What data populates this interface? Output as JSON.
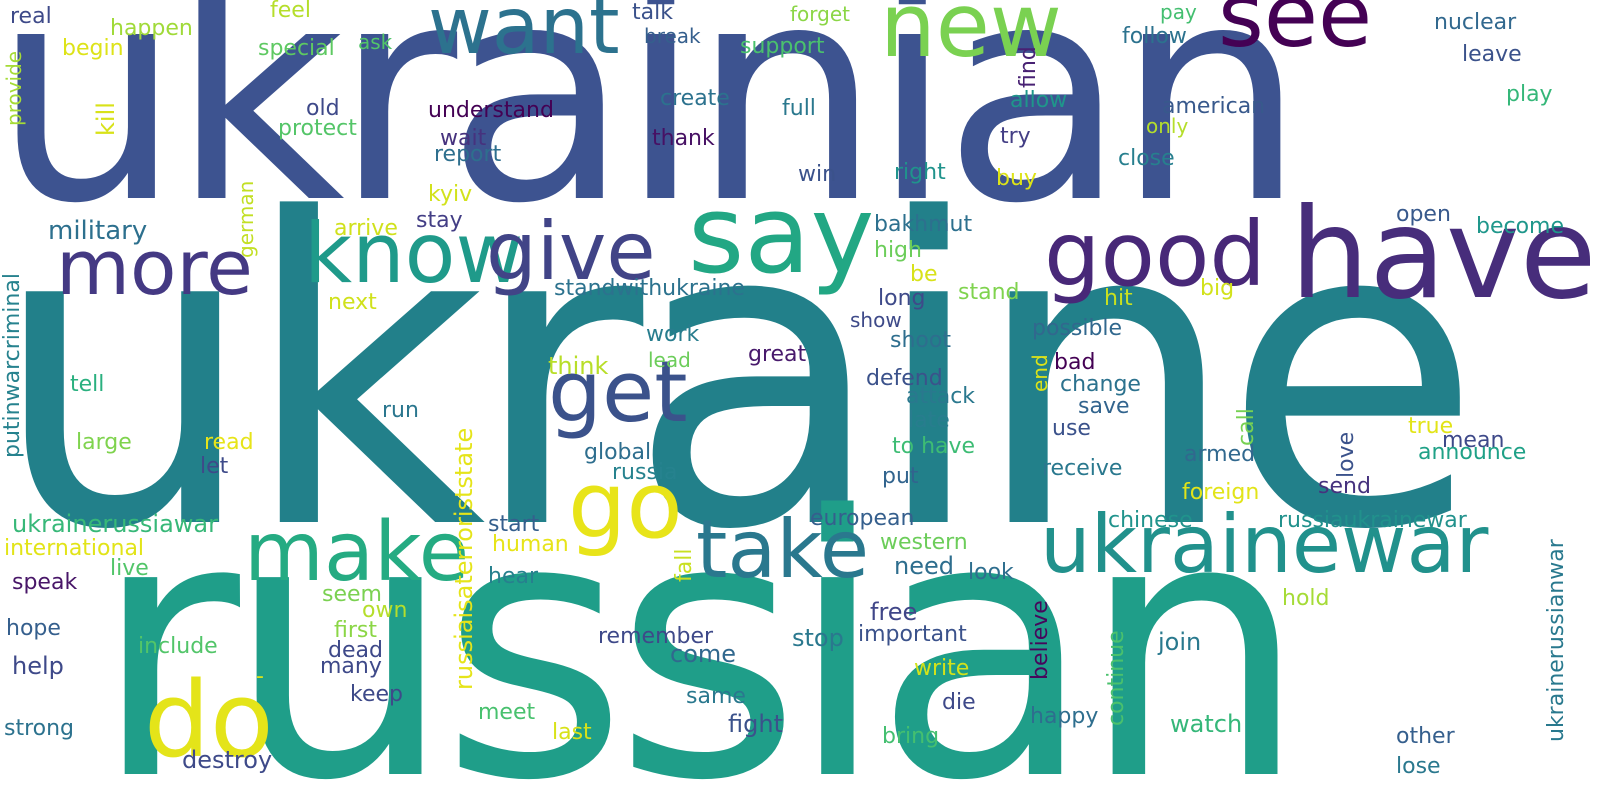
{
  "words": [
    {
      "text": "ukraine",
      "color": "#22808a"
    },
    {
      "text": "ukrainian",
      "color": "#3d5390"
    },
    {
      "text": "russian",
      "color": "#1f9e89"
    },
    {
      "text": "have",
      "color": "#472d7b"
    },
    {
      "text": "say",
      "color": "#22a784"
    },
    {
      "text": "know",
      "color": "#1f9a8a"
    },
    {
      "text": "give",
      "color": "#414487"
    },
    {
      "text": "good",
      "color": "#482878"
    },
    {
      "text": "more",
      "color": "#443983"
    },
    {
      "text": "want",
      "color": "#2c728e"
    },
    {
      "text": "new",
      "color": "#7ad151"
    },
    {
      "text": "see",
      "color": "#440154"
    },
    {
      "text": "get",
      "color": "#3b528b"
    },
    {
      "text": "go",
      "color": "#e8e419"
    },
    {
      "text": "make",
      "color": "#25ab82"
    },
    {
      "text": "take",
      "color": "#2a788e"
    },
    {
      "text": "ukrainewar",
      "color": "#21918c"
    },
    {
      "text": "do",
      "color": "#e4e419"
    },
    {
      "text": "real",
      "color": "#3e4a89"
    },
    {
      "text": "happen",
      "color": "#a0da39"
    },
    {
      "text": "feel",
      "color": "#b5de2b"
    },
    {
      "text": "begin",
      "color": "#dde318"
    },
    {
      "text": "special",
      "color": "#5ec962"
    },
    {
      "text": "ask",
      "color": "#52c569"
    },
    {
      "text": "talk",
      "color": "#3b528b"
    },
    {
      "text": "break",
      "color": "#355f8d"
    },
    {
      "text": "forget",
      "color": "#8bd646"
    },
    {
      "text": "support",
      "color": "#4ac16d"
    },
    {
      "text": "pay",
      "color": "#44bf70"
    },
    {
      "text": "follow",
      "color": "#2c728e"
    },
    {
      "text": "nuclear",
      "color": "#31688e"
    },
    {
      "text": "leave",
      "color": "#3b528b"
    },
    {
      "text": "play",
      "color": "#35b779"
    },
    {
      "text": "provide",
      "color": "#a5db36"
    },
    {
      "text": "kill",
      "color": "#d8e219"
    },
    {
      "text": "old",
      "color": "#3e4989"
    },
    {
      "text": "protect",
      "color": "#54c568"
    },
    {
      "text": "understand",
      "color": "#440154"
    },
    {
      "text": "wait",
      "color": "#46327e"
    },
    {
      "text": "report",
      "color": "#2e6f8e"
    },
    {
      "text": "create",
      "color": "#2c728e"
    },
    {
      "text": "thank",
      "color": "#471164"
    },
    {
      "text": "full",
      "color": "#2a788e"
    },
    {
      "text": "find",
      "color": "#482173"
    },
    {
      "text": "allow",
      "color": "#1f968b"
    },
    {
      "text": "try",
      "color": "#433e85"
    },
    {
      "text": "american",
      "color": "#38598c"
    },
    {
      "text": "only",
      "color": "#b5de2b"
    },
    {
      "text": "close",
      "color": "#277f8e"
    },
    {
      "text": "german",
      "color": "#c2df23"
    },
    {
      "text": "kyiv",
      "color": "#d2e21b"
    },
    {
      "text": "win",
      "color": "#3b528b"
    },
    {
      "text": "right",
      "color": "#20938c"
    },
    {
      "text": "buy",
      "color": "#dde318"
    },
    {
      "text": "putinwarcriminal",
      "color": "#26828e"
    },
    {
      "text": "military",
      "color": "#2d708e"
    },
    {
      "text": "arrive",
      "color": "#d0e11c"
    },
    {
      "text": "stay",
      "color": "#433e85"
    },
    {
      "text": "bakhmut",
      "color": "#2d708e"
    },
    {
      "text": "open",
      "color": "#38598c"
    },
    {
      "text": "become",
      "color": "#1f978b"
    },
    {
      "text": "high",
      "color": "#6ccd5a"
    },
    {
      "text": "next",
      "color": "#d0e11c"
    },
    {
      "text": "standwithukraine",
      "color": "#2c728e"
    },
    {
      "text": "be",
      "color": "#d8e219"
    },
    {
      "text": "long",
      "color": "#3e4a89"
    },
    {
      "text": "stand",
      "color": "#7fd34e"
    },
    {
      "text": "hit",
      "color": "#c8e020"
    },
    {
      "text": "big",
      "color": "#d2e21b"
    },
    {
      "text": "russiaisaterroriststate",
      "color": "#e5e419"
    },
    {
      "text": "work",
      "color": "#287d8e"
    },
    {
      "text": "lead",
      "color": "#6ccd5a"
    },
    {
      "text": "think",
      "color": "#b8de29"
    },
    {
      "text": "great",
      "color": "#481a6c"
    },
    {
      "text": "show",
      "color": "#3e4a89"
    },
    {
      "text": "shoot",
      "color": "#2e6e8e"
    },
    {
      "text": "possible",
      "color": "#31688e"
    },
    {
      "text": "tell",
      "color": "#2ab07f"
    },
    {
      "text": "defend",
      "color": "#3b528b"
    },
    {
      "text": "end",
      "color": "#dde318"
    },
    {
      "text": "bad",
      "color": "#440154"
    },
    {
      "text": "change",
      "color": "#2c728e"
    },
    {
      "text": "attack",
      "color": "#2a788e"
    },
    {
      "text": "save",
      "color": "#32648e"
    },
    {
      "text": "run",
      "color": "#2a768e"
    },
    {
      "text": "late",
      "color": "#287d8e"
    },
    {
      "text": "use",
      "color": "#3b528b"
    },
    {
      "text": "call",
      "color": "#77d153"
    },
    {
      "text": "true",
      "color": "#e2e418"
    },
    {
      "text": "mean",
      "color": "#3e4989"
    },
    {
      "text": "large",
      "color": "#7fd34e"
    },
    {
      "text": "read",
      "color": "#e7e419"
    },
    {
      "text": "global",
      "color": "#2e6e8e"
    },
    {
      "text": "to have",
      "color": "#3dbc74"
    },
    {
      "text": "love",
      "color": "#3b528b"
    },
    {
      "text": "announce",
      "color": "#1fa187"
    },
    {
      "text": "let",
      "color": "#3e4a89"
    },
    {
      "text": "russia",
      "color": "#26828e"
    },
    {
      "text": "put",
      "color": "#32648e"
    },
    {
      "text": "receive",
      "color": "#2a788e"
    },
    {
      "text": "armed",
      "color": "#31688e"
    },
    {
      "text": "foreign",
      "color": "#e2e418"
    },
    {
      "text": "send",
      "color": "#46327e"
    },
    {
      "text": "ukrainerussiawar",
      "color": "#37b878"
    },
    {
      "text": "start",
      "color": "#355f8d"
    },
    {
      "text": "european",
      "color": "#355f8d"
    },
    {
      "text": "chinese",
      "color": "#20938c"
    },
    {
      "text": "russiaukrainewar",
      "color": "#21918c"
    },
    {
      "text": "ukrainerussianwar",
      "color": "#29798e"
    },
    {
      "text": "international",
      "color": "#e2e418"
    },
    {
      "text": "human",
      "color": "#e7e419"
    },
    {
      "text": "fall",
      "color": "#c8e020"
    },
    {
      "text": "western",
      "color": "#6ccd5a"
    },
    {
      "text": "live",
      "color": "#52c569"
    },
    {
      "text": "need",
      "color": "#2e6e8e"
    },
    {
      "text": "look",
      "color": "#2e6e8e"
    },
    {
      "text": "speak",
      "color": "#481668"
    },
    {
      "text": "hear",
      "color": "#27808e"
    },
    {
      "text": "seem",
      "color": "#7ad151"
    },
    {
      "text": "believe",
      "color": "#46085c"
    },
    {
      "text": "hold",
      "color": "#a5db36"
    },
    {
      "text": "own",
      "color": "#b5de2b"
    },
    {
      "text": "free",
      "color": "#404688"
    },
    {
      "text": "hope",
      "color": "#355f8d"
    },
    {
      "text": "first",
      "color": "#8bd646"
    },
    {
      "text": "remember",
      "color": "#3e4989"
    },
    {
      "text": "stop",
      "color": "#2a788e"
    },
    {
      "text": "important",
      "color": "#3b528b"
    },
    {
      "text": "continue",
      "color": "#4ac16d"
    },
    {
      "text": "join",
      "color": "#29798e"
    },
    {
      "text": "include",
      "color": "#52c569"
    },
    {
      "text": "dead",
      "color": "#3e4989"
    },
    {
      "text": "come",
      "color": "#31688e"
    },
    {
      "text": "help",
      "color": "#3e4989"
    },
    {
      "text": "many",
      "color": "#3e4989"
    },
    {
      "text": "-",
      "color": "#d8e219"
    },
    {
      "text": "write",
      "color": "#d2e21b"
    },
    {
      "text": "keep",
      "color": "#3e4a89"
    },
    {
      "text": "same",
      "color": "#2a788e"
    },
    {
      "text": "die",
      "color": "#3e4989"
    },
    {
      "text": "happy",
      "color": "#2e6e8e"
    },
    {
      "text": "meet",
      "color": "#48c16e"
    },
    {
      "text": "fight",
      "color": "#3b528b"
    },
    {
      "text": "watch",
      "color": "#35b779"
    },
    {
      "text": "strong",
      "color": "#2c728e"
    },
    {
      "text": "last",
      "color": "#d8e219"
    },
    {
      "text": "bring",
      "color": "#44bf70"
    },
    {
      "text": "other",
      "color": "#355f8d"
    },
    {
      "text": "destroy",
      "color": "#3e4a89"
    },
    {
      "text": "lose",
      "color": "#2a788e"
    }
  ]
}
